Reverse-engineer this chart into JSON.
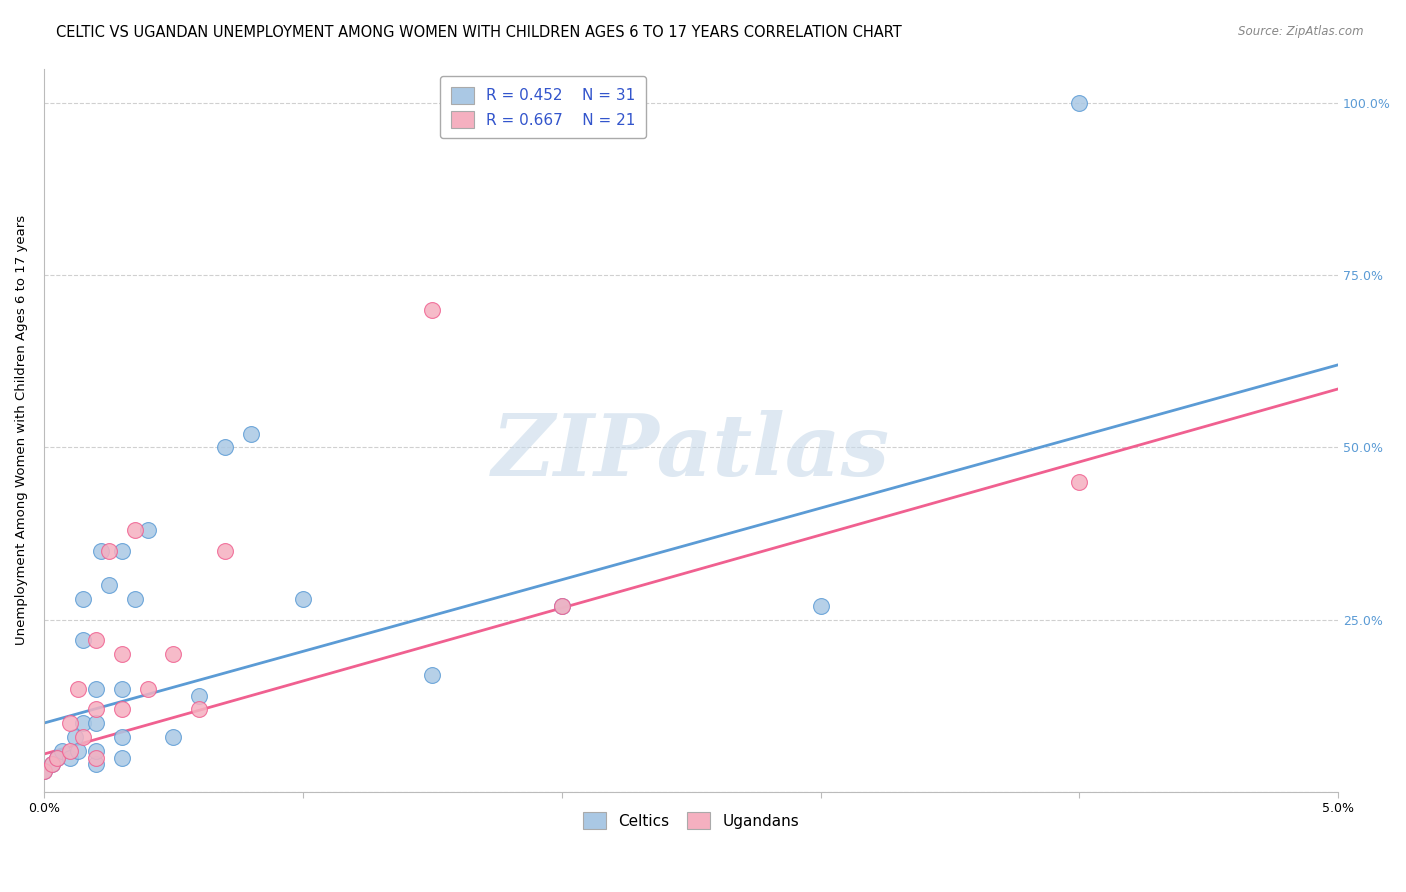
{
  "title": "CELTIC VS UGANDAN UNEMPLOYMENT AMONG WOMEN WITH CHILDREN AGES 6 TO 17 YEARS CORRELATION CHART",
  "source": "Source: ZipAtlas.com",
  "xlabel": "",
  "ylabel": "Unemployment Among Women with Children Ages 6 to 17 years",
  "xlim": [
    0.0,
    0.05
  ],
  "ylim": [
    0.0,
    1.05
  ],
  "xticks": [
    0.0,
    0.01,
    0.02,
    0.03,
    0.04,
    0.05
  ],
  "xtick_labels": [
    "0.0%",
    "",
    "",
    "",
    "",
    "5.0%"
  ],
  "yticks": [
    0.0,
    0.25,
    0.5,
    0.75,
    1.0
  ],
  "ytick_labels": [
    "",
    "25.0%",
    "50.0%",
    "75.0%",
    "100.0%"
  ],
  "celtics_R": "0.452",
  "celtics_N": "31",
  "ugandans_R": "0.667",
  "ugandans_N": "21",
  "celtics_color": "#aac8e4",
  "ugandans_color": "#f5b0c0",
  "celtics_line_color": "#5b9bd5",
  "ugandans_line_color": "#f06090",
  "celtics_x": [
    0.0,
    0.0003,
    0.0005,
    0.0007,
    0.001,
    0.0012,
    0.0013,
    0.0015,
    0.0015,
    0.0015,
    0.002,
    0.002,
    0.002,
    0.002,
    0.0022,
    0.0025,
    0.003,
    0.003,
    0.003,
    0.003,
    0.0035,
    0.004,
    0.005,
    0.006,
    0.007,
    0.008,
    0.01,
    0.015,
    0.02,
    0.03,
    0.04
  ],
  "celtics_y": [
    0.03,
    0.04,
    0.05,
    0.06,
    0.05,
    0.08,
    0.06,
    0.1,
    0.22,
    0.28,
    0.04,
    0.06,
    0.1,
    0.15,
    0.35,
    0.3,
    0.05,
    0.08,
    0.15,
    0.35,
    0.28,
    0.38,
    0.08,
    0.14,
    0.5,
    0.52,
    0.28,
    0.17,
    0.27,
    0.27,
    1.0
  ],
  "ugandans_x": [
    0.0,
    0.0003,
    0.0005,
    0.001,
    0.001,
    0.0013,
    0.0015,
    0.002,
    0.002,
    0.002,
    0.0025,
    0.003,
    0.003,
    0.0035,
    0.004,
    0.005,
    0.006,
    0.007,
    0.015,
    0.02,
    0.04
  ],
  "ugandans_y": [
    0.03,
    0.04,
    0.05,
    0.06,
    0.1,
    0.15,
    0.08,
    0.05,
    0.12,
    0.22,
    0.35,
    0.12,
    0.2,
    0.38,
    0.15,
    0.2,
    0.12,
    0.35,
    0.7,
    0.27,
    0.45
  ],
  "celtics_line_x0": 0.0,
  "celtics_line_y0": 0.1,
  "celtics_line_x1": 0.05,
  "celtics_line_y1": 0.62,
  "ugandans_line_x0": 0.0,
  "ugandans_line_y0": 0.055,
  "ugandans_line_x1": 0.05,
  "ugandans_line_y1": 0.585,
  "watermark": "ZIPatlas",
  "background_color": "#ffffff",
  "grid_color": "#d0d0d0",
  "title_fontsize": 10.5,
  "axis_label_fontsize": 9.5,
  "tick_fontsize": 9,
  "legend_fontsize": 11
}
